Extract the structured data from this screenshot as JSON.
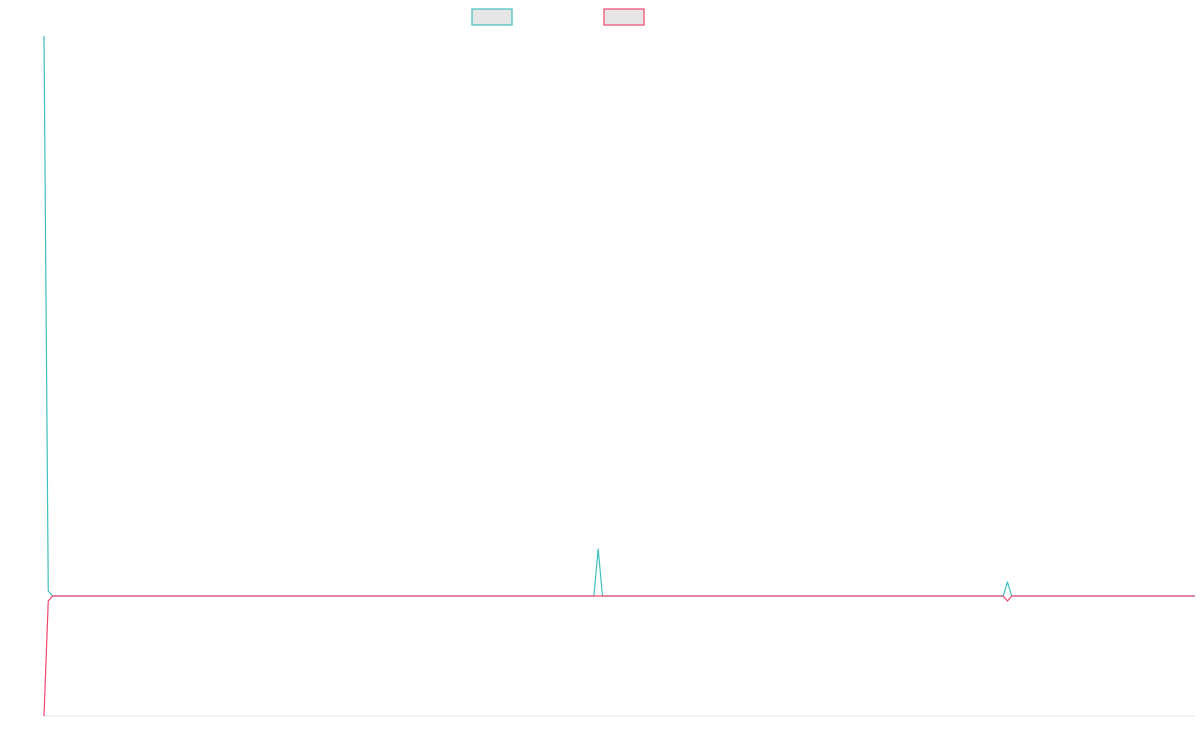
{
  "colors": {
    "series_a": "#3fbfbf",
    "series_b": "#f0466e",
    "axis": "#e0e0e0",
    "legend_fill": "#e6e6e6"
  },
  "chart_data": {
    "type": "line",
    "title": "",
    "xlabel": "",
    "ylabel": "",
    "legend": "top-center",
    "grid": false,
    "xlim": [
      0,
      270
    ],
    "ylim": [
      -120,
      560
    ],
    "series": [
      {
        "color": "#3fbfbf",
        "points": [
          [
            0,
            560
          ],
          [
            1,
            5
          ],
          [
            2,
            0
          ],
          [
            129,
            0
          ],
          [
            130,
            47
          ],
          [
            131,
            0
          ],
          [
            225,
            0
          ],
          [
            226,
            14
          ],
          [
            227,
            0
          ],
          [
            270,
            0
          ]
        ]
      },
      {
        "color": "#f0466e",
        "points": [
          [
            0,
            -120
          ],
          [
            1,
            -5
          ],
          [
            2,
            0
          ],
          [
            225,
            0
          ],
          [
            226,
            -5
          ],
          [
            227,
            0
          ],
          [
            270,
            0
          ]
        ]
      }
    ]
  }
}
